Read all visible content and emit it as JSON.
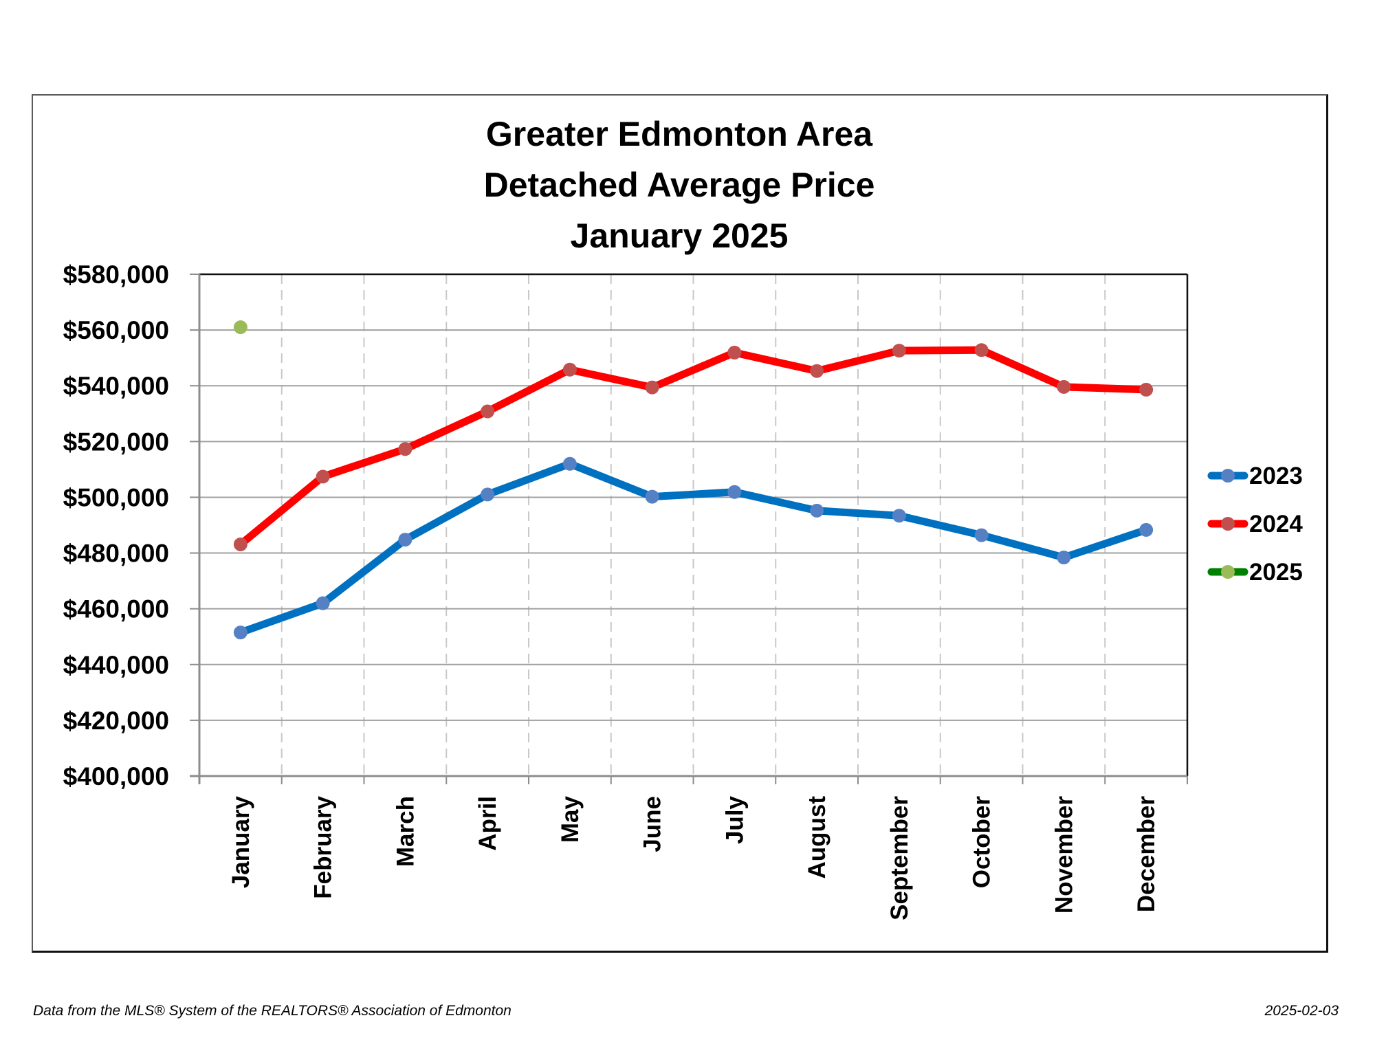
{
  "footer": {
    "source": "Data from the MLS® System of the REALTORS® Association of Edmonton",
    "date": "2025-02-03"
  },
  "chart_data": {
    "type": "line",
    "title_lines": [
      "Greater Edmonton Area",
      "Detached Average Price",
      "January 2025"
    ],
    "title": "Greater Edmonton Area Detached Average Price January 2025",
    "xlabel": "",
    "ylabel": "",
    "categories": [
      "January",
      "February",
      "March",
      "April",
      "May",
      "June",
      "July",
      "August",
      "September",
      "October",
      "November",
      "December"
    ],
    "ylim": [
      400000,
      580000
    ],
    "y_ticks": [
      400000,
      420000,
      440000,
      460000,
      480000,
      500000,
      520000,
      540000,
      560000,
      580000
    ],
    "y_tick_labels": [
      "$400,000",
      "$420,000",
      "$440,000",
      "$460,000",
      "$480,000",
      "$500,000",
      "$520,000",
      "$540,000",
      "$560,000",
      "$580,000"
    ],
    "grid": {
      "horizontal": "solid",
      "vertical": "dashed"
    },
    "legend_position": "right",
    "series": [
      {
        "name": "2023",
        "line_color": "#0070C0",
        "marker_color": "#5581C4",
        "values": [
          451500,
          462000,
          484800,
          501000,
          512000,
          500200,
          501900,
          495200,
          493400,
          486400,
          478400,
          488300
        ]
      },
      {
        "name": "2024",
        "line_color": "#FF0000",
        "marker_color": "#C0504D",
        "values": [
          483100,
          507400,
          517300,
          530800,
          545800,
          539400,
          551900,
          545300,
          552600,
          552800,
          539600,
          538600
        ]
      },
      {
        "name": "2025",
        "line_color": "#008000",
        "marker_color": "#9BBB59",
        "values": [
          561000,
          null,
          null,
          null,
          null,
          null,
          null,
          null,
          null,
          null,
          null,
          null
        ]
      }
    ]
  }
}
